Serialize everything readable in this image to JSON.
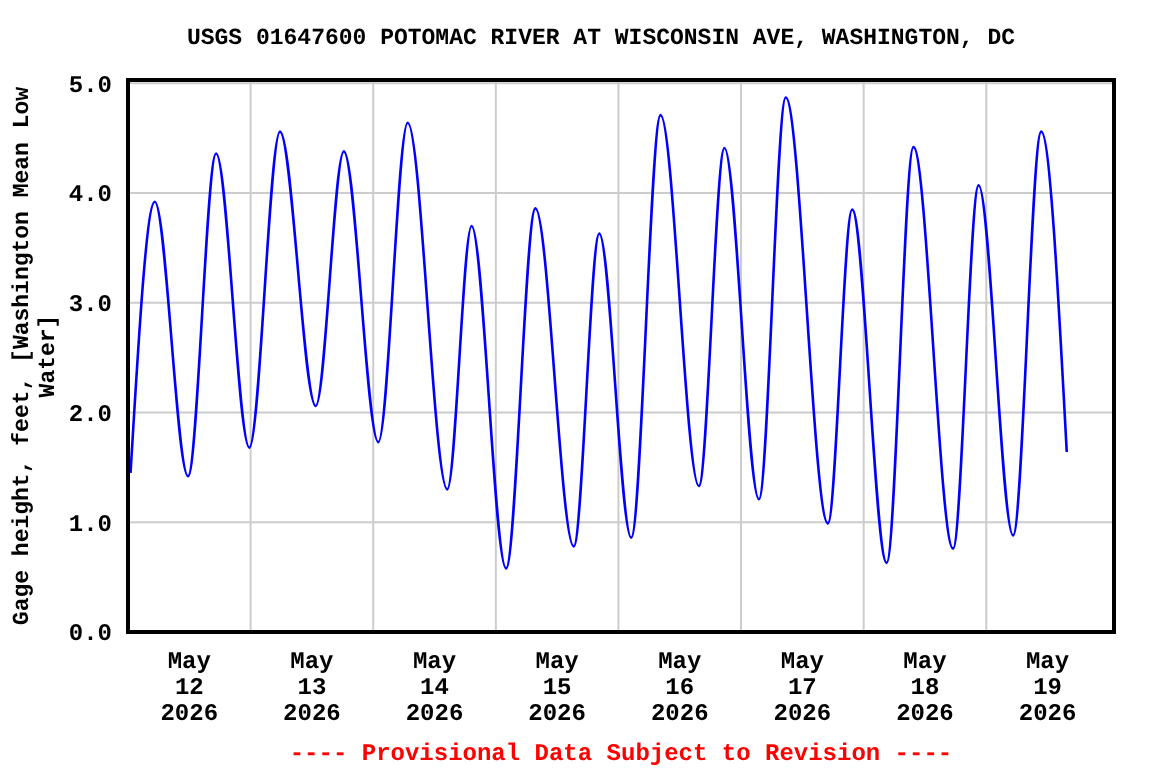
{
  "chart_data": {
    "type": "line",
    "title": "USGS 01647600 POTOMAC RIVER AT WISCONSIN AVE, WASHINGTON, DC",
    "ylabel": "Gage height, feet, [Washington Mean Low Water]",
    "annotations": [
      "---- Provisional Data Subject to Revision ----"
    ],
    "x": [
      "2026-05-12T00:30",
      "2026-05-12T05:15",
      "2026-05-12T11:45",
      "2026-05-12T17:15",
      "2026-05-12T23:45",
      "2026-05-13T05:45",
      "2026-05-13T12:45",
      "2026-05-13T18:15",
      "2026-05-14T01:00",
      "2026-05-14T06:45",
      "2026-05-14T14:30",
      "2026-05-14T19:15",
      "2026-05-15T02:00",
      "2026-05-15T07:45",
      "2026-05-15T15:15",
      "2026-05-15T20:15",
      "2026-05-16T02:30",
      "2026-05-16T08:15",
      "2026-05-16T15:45",
      "2026-05-16T20:45",
      "2026-05-17T03:30",
      "2026-05-17T08:45",
      "2026-05-17T17:00",
      "2026-05-17T21:45",
      "2026-05-18T04:30",
      "2026-05-18T09:45",
      "2026-05-18T17:30",
      "2026-05-18T22:30",
      "2026-05-19T05:15",
      "2026-05-19T10:45",
      "2026-05-19T15:45"
    ],
    "series": [
      {
        "color": "#0000ff",
        "values": [
          1.45,
          3.92,
          1.42,
          4.36,
          1.68,
          4.56,
          2.06,
          4.38,
          1.73,
          4.64,
          1.3,
          3.7,
          0.58,
          3.86,
          0.78,
          3.63,
          0.86,
          4.71,
          1.33,
          4.41,
          1.21,
          4.87,
          0.99,
          3.85,
          0.63,
          4.42,
          0.76,
          4.07,
          0.88,
          4.56,
          1.64
        ]
      }
    ],
    "xlim": [
      "2026-05-12T00:00",
      "2026-05-20T01:00"
    ],
    "xticks": [
      {
        "value": "2026-05-12T12:00",
        "label": "May\n12\n2026"
      },
      {
        "value": "2026-05-13T12:00",
        "label": "May\n13\n2026"
      },
      {
        "value": "2026-05-14T12:00",
        "label": "May\n14\n2026"
      },
      {
        "value": "2026-05-15T12:00",
        "label": "May\n15\n2026"
      },
      {
        "value": "2026-05-16T12:00",
        "label": "May\n16\n2026"
      },
      {
        "value": "2026-05-17T12:00",
        "label": "May\n17\n2026"
      },
      {
        "value": "2026-05-18T12:00",
        "label": "May\n18\n2026"
      },
      {
        "value": "2026-05-19T12:00",
        "label": "May\n19\n2026"
      },
      {
        "value": "2026-05-13T00:00",
        "label": null
      },
      {
        "value": "2026-05-14T00:00",
        "label": null
      },
      {
        "value": "2026-05-15T00:00",
        "label": null
      },
      {
        "value": "2026-05-16T00:00",
        "label": null
      },
      {
        "value": "2026-05-17T00:00",
        "label": null
      },
      {
        "value": "2026-05-18T00:00",
        "label": null
      },
      {
        "value": "2026-05-19T00:00",
        "label": null
      }
    ],
    "ylim": [
      0,
      5.03
    ],
    "yticks": [
      {
        "value": 0,
        "label": "0.0"
      },
      {
        "value": 1,
        "label": "1.0"
      },
      {
        "value": 2,
        "label": "2.0"
      },
      {
        "value": 3,
        "label": "3.0"
      },
      {
        "value": 4,
        "label": "4.0"
      },
      {
        "value": 5,
        "label": "5.0"
      }
    ],
    "grid": true,
    "marker": "none",
    "line_style": "solid"
  }
}
